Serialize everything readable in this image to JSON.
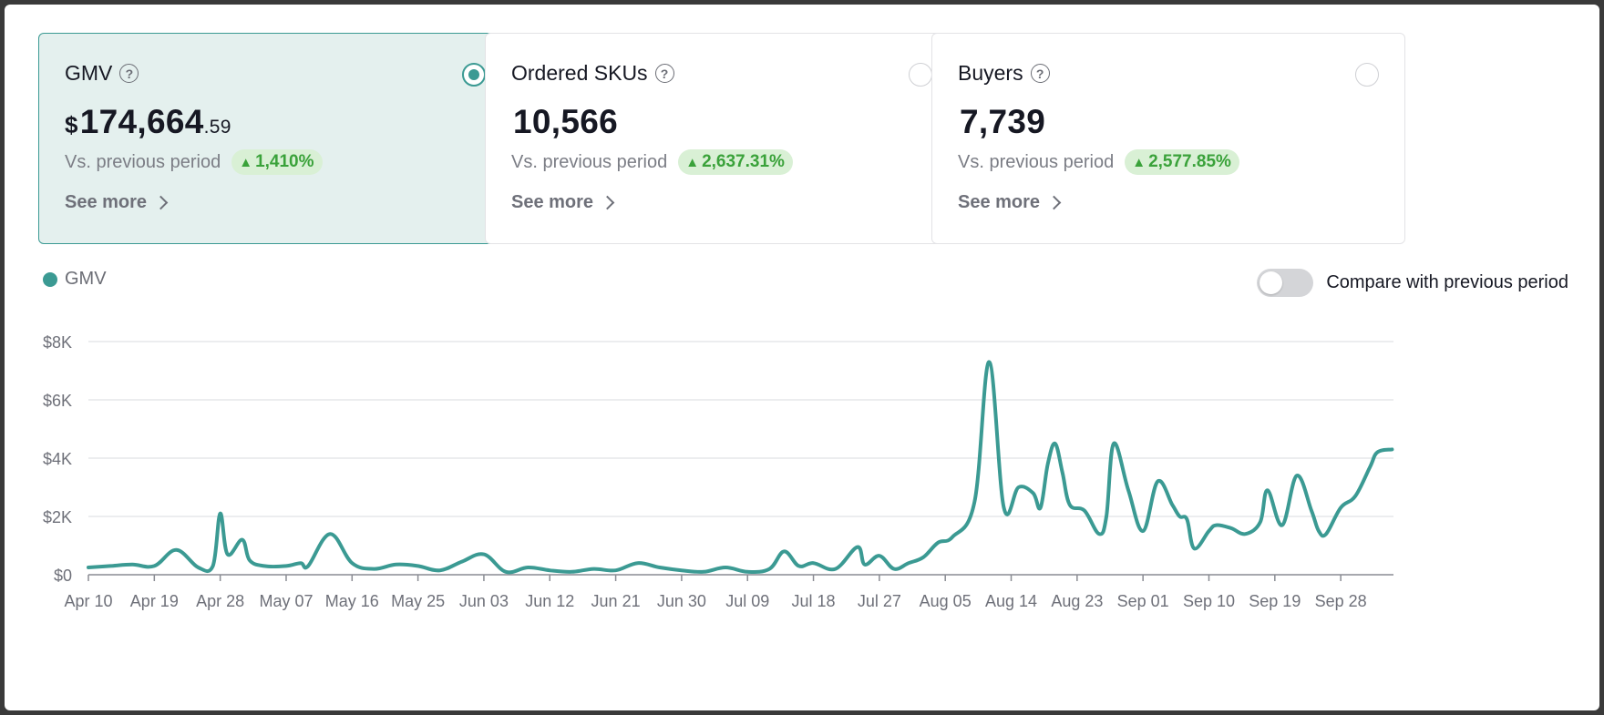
{
  "cards": [
    {
      "title": "GMV",
      "currency": "$",
      "value_main": "174,664",
      "value_cents": ".59",
      "vs_label": "Vs. previous period",
      "delta": "1,410%",
      "see_more": "See more",
      "selected": true
    },
    {
      "title": "Ordered SKUs",
      "currency": "",
      "value_main": "10,566",
      "value_cents": "",
      "vs_label": "Vs. previous period",
      "delta": "2,637.31%",
      "see_more": "See more",
      "selected": false
    },
    {
      "title": "Buyers",
      "currency": "",
      "value_main": "7,739",
      "value_cents": "",
      "vs_label": "Vs. previous period",
      "delta": "2,577.85%",
      "see_more": "See more",
      "selected": false
    }
  ],
  "compare_label": "Compare with previous period",
  "compare_enabled": false,
  "colors": {
    "accent": "#3b9a93",
    "delta_green": "#3aa23a",
    "delta_bg": "#d9f0d5"
  },
  "chart_data": {
    "type": "line",
    "title": "",
    "xlabel": "",
    "ylabel": "",
    "ylim": [
      0,
      8000
    ],
    "yticks": [
      0,
      2000,
      4000,
      6000,
      8000
    ],
    "ytick_labels": [
      "$0",
      "$2K",
      "$4K",
      "$6K",
      "$8K"
    ],
    "xtick_labels": [
      "Apr 10",
      "Apr 19",
      "Apr 28",
      "May 07",
      "May 16",
      "May 25",
      "Jun 03",
      "Jun 12",
      "Jun 21",
      "Jun 30",
      "Jul 09",
      "Jul 18",
      "Jul 27",
      "Aug 05",
      "Aug 14",
      "Aug 23",
      "Sep 01",
      "Sep 10",
      "Sep 19",
      "Sep 28"
    ],
    "grid": true,
    "legend": "top-left",
    "series": [
      {
        "name": "GMV",
        "color": "#3b9a93",
        "x": [
          "Apr 10",
          "Apr 13",
          "Apr 16",
          "Apr 19",
          "Apr 22",
          "Apr 25",
          "Apr 27",
          "Apr 28",
          "Apr 29",
          "Apr 31",
          "May 02",
          "May 04",
          "May 07",
          "May 09",
          "May 10",
          "May 13",
          "May 16",
          "May 19",
          "May 22",
          "May 25",
          "May 28",
          "May 31",
          "Jun 03",
          "Jun 06",
          "Jun 09",
          "Jun 12",
          "Jun 15",
          "Jun 18",
          "Jun 21",
          "Jun 24",
          "Jun 27",
          "Jun 30",
          "Jul 03",
          "Jul 06",
          "Jul 09",
          "Jul 12",
          "Jul 14",
          "Jul 16",
          "Jul 18",
          "Jul 21",
          "Jul 24",
          "Jul 25",
          "Jul 27",
          "Jul 29",
          "Jul 31",
          "Aug 02",
          "Aug 04",
          "Aug 06",
          "Aug 09",
          "Aug 11",
          "Aug 13",
          "Aug 15",
          "Aug 17",
          "Aug 18",
          "Aug 19",
          "Aug 20",
          "Aug 21",
          "Aug 22",
          "Aug 24",
          "Aug 26",
          "Aug 27",
          "Aug 28",
          "Aug 30",
          "Sep 01",
          "Sep 03",
          "Sep 05",
          "Sep 06",
          "Sep 07",
          "Sep 08",
          "Sep 10",
          "Sep 11",
          "Sep 13",
          "Sep 15",
          "Sep 17",
          "Sep 18",
          "Sep 20",
          "Sep 22",
          "Sep 24",
          "Sep 25",
          "Sep 26",
          "Sep 28",
          "Sep 30",
          "Oct 02",
          "Oct 03",
          "Oct 05"
        ],
        "values": [
          250,
          300,
          350,
          300,
          850,
          250,
          300,
          2100,
          700,
          1200,
          500,
          300,
          300,
          400,
          300,
          1400,
          400,
          200,
          350,
          300,
          150,
          450,
          700,
          100,
          250,
          150,
          100,
          200,
          150,
          400,
          250,
          150,
          100,
          250,
          100,
          200,
          800,
          300,
          400,
          200,
          950,
          350,
          650,
          200,
          400,
          600,
          1100,
          1300,
          2500,
          7300,
          2300,
          3000,
          2800,
          2300,
          3800,
          4500,
          3500,
          2400,
          2200,
          1400,
          2000,
          4500,
          2900,
          1500,
          3200,
          2400,
          2000,
          1900,
          900,
          1500,
          1700,
          1600,
          1400,
          1800,
          2900,
          1700,
          3400,
          2200,
          1500,
          1400,
          2300,
          2700,
          3700,
          4200,
          4300
        ]
      }
    ]
  }
}
